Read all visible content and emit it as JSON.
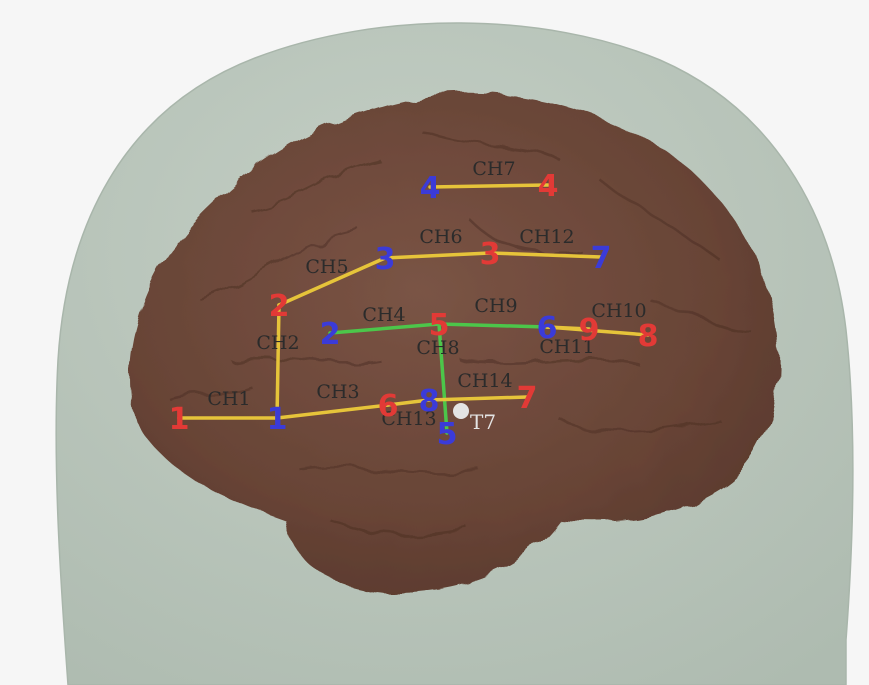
{
  "colors": {
    "background": "#f6f6f6",
    "head": "#b9c6bb",
    "head_edge": "#a9b6ab",
    "brain": "#6e4a3d",
    "brain_dark": "#553629",
    "source": "#e23a36",
    "detector": "#3b3bd8",
    "channel_long": "#e6c43a",
    "channel_short": "#4cc64a",
    "channel_label": "#2b2b2b",
    "reference": "#e4e4e4"
  },
  "optodes": {
    "sources": [
      {
        "id": "s1",
        "label": "1"
      },
      {
        "id": "s2",
        "label": "2"
      },
      {
        "id": "s3",
        "label": "3"
      },
      {
        "id": "s4",
        "label": "4"
      },
      {
        "id": "s5",
        "label": "5"
      },
      {
        "id": "s6",
        "label": "6"
      },
      {
        "id": "s7",
        "label": "7"
      },
      {
        "id": "s8",
        "label": "8"
      },
      {
        "id": "s9",
        "label": "9"
      }
    ],
    "detectors": [
      {
        "id": "d1",
        "label": "1"
      },
      {
        "id": "d2",
        "label": "2"
      },
      {
        "id": "d3",
        "label": "3"
      },
      {
        "id": "d4",
        "label": "4"
      },
      {
        "id": "d5",
        "label": "5"
      },
      {
        "id": "d6",
        "label": "6"
      },
      {
        "id": "d7",
        "label": "7"
      },
      {
        "id": "d8",
        "label": "8"
      }
    ]
  },
  "channels": [
    {
      "id": "ch1",
      "label": "CH1",
      "from": "s1",
      "to": "d1",
      "kind": "long"
    },
    {
      "id": "ch2",
      "label": "CH2",
      "from": "s2",
      "to": "d1",
      "kind": "long"
    },
    {
      "id": "ch3",
      "label": "CH3",
      "from": "s6",
      "to": "d1",
      "kind": "long"
    },
    {
      "id": "ch4",
      "label": "CH4",
      "from": "s5",
      "to": "d2",
      "kind": "short"
    },
    {
      "id": "ch5",
      "label": "CH5",
      "from": "s2",
      "to": "d3",
      "kind": "long"
    },
    {
      "id": "ch6",
      "label": "CH6",
      "from": "s3",
      "to": "d3",
      "kind": "long"
    },
    {
      "id": "ch7",
      "label": "CH7",
      "from": "s4",
      "to": "d4",
      "kind": "long"
    },
    {
      "id": "ch8",
      "label": "CH8",
      "from": "s5",
      "to": "d5",
      "kind": "short"
    },
    {
      "id": "ch9",
      "label": "CH9",
      "from": "s5",
      "to": "d6",
      "kind": "short"
    },
    {
      "id": "ch10",
      "label": "CH10",
      "from": "s9",
      "to": "d6",
      "kind": "long"
    },
    {
      "id": "ch11",
      "label": "CH11",
      "from": "s8",
      "to": "d6",
      "kind": "long"
    },
    {
      "id": "ch12",
      "label": "CH12",
      "from": "s3",
      "to": "d7",
      "kind": "long"
    },
    {
      "id": "ch13",
      "label": "CH13",
      "from": "s6",
      "to": "d8",
      "kind": "long"
    },
    {
      "id": "ch14",
      "label": "CH14",
      "from": "s7",
      "to": "d8",
      "kind": "long"
    }
  ],
  "reference_point": {
    "label": "T7"
  }
}
